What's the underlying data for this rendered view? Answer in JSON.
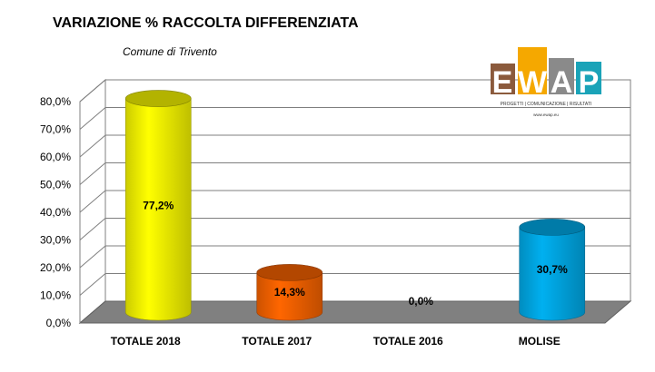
{
  "chart_data": {
    "type": "bar",
    "title": "VARIAZIONE % RACCOLTA DIFFERENZIATA",
    "subtitle": "Comune di Trivento",
    "categories": [
      "TOTALE 2018",
      "TOTALE 2017",
      "TOTALE 2016",
      "MOLISE"
    ],
    "values": [
      77.2,
      14.3,
      0.0,
      30.7
    ],
    "value_labels": [
      "77,2%",
      "14,3%",
      "0,0%",
      "30,7%"
    ],
    "colors": [
      "#ffff00",
      "#ff6600",
      "#999999",
      "#00b0f0"
    ],
    "ylim": [
      0,
      80
    ],
    "yticks": [
      "0,0%",
      "10,0%",
      "20,0%",
      "30,0%",
      "40,0%",
      "50,0%",
      "60,0%",
      "70,0%",
      "80,0%"
    ],
    "grid": true,
    "style": "3d-cylinder"
  },
  "logo": {
    "letters": [
      "E",
      "W",
      "A",
      "P"
    ],
    "tagline": "PROGETTI | COMUNICAZIONE | RISULTATI",
    "url": "www.ewap.eu",
    "colors": [
      "#8b5a3c",
      "#f5a800",
      "#8a8a8a",
      "#1aa3b8"
    ]
  }
}
